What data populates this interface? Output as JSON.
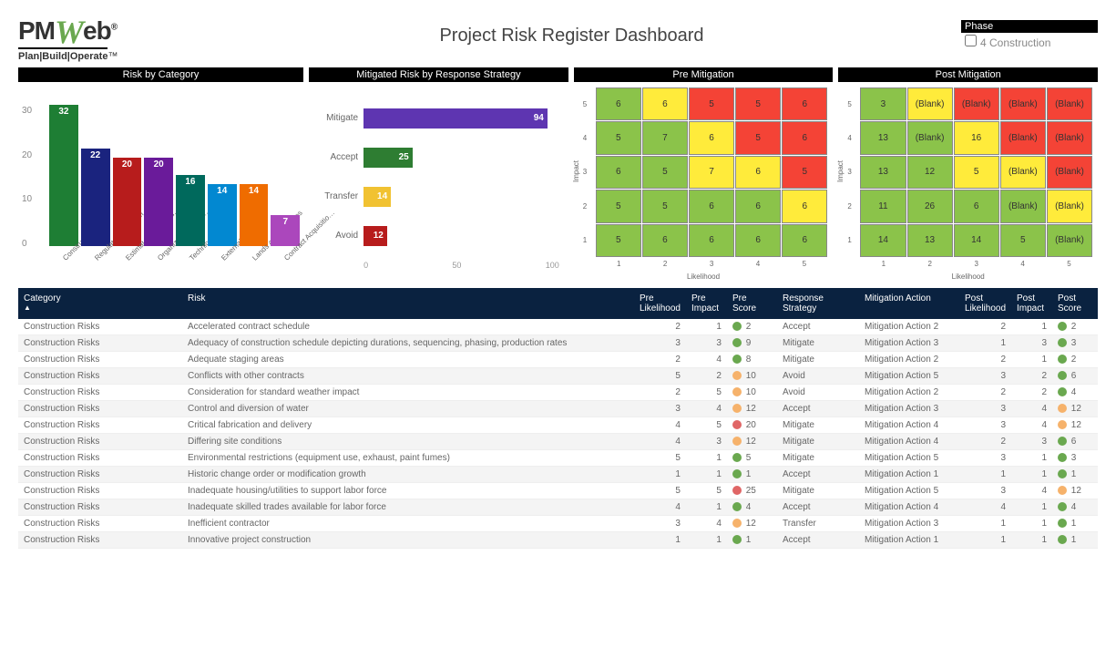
{
  "title": "Project Risk Register Dashboard",
  "logo": {
    "text_before": "PM",
    "w": "W",
    "text_after": "eb",
    "tagline": "Plan|Build|Operate",
    "tm": "™",
    "reg": "®"
  },
  "phase": {
    "label": "Phase",
    "value": "4 Construction"
  },
  "colors": {
    "header_bg": "#000000",
    "table_header_bg": "#0a2240",
    "green": "#6aa84f",
    "yellow": "#f1c232",
    "red": "#cc0000",
    "orange": "#f6b26b",
    "heat_green": "#8bc34a",
    "heat_yellow": "#ffeb3b",
    "heat_red": "#f44336"
  },
  "panel_titles": {
    "cat": "Risk by Category",
    "strat": "Mitigated Risk by Response Strategy",
    "pre": "Pre Mitigation",
    "post": "Post Mitigation"
  },
  "risk_by_category": {
    "type": "bar",
    "ymax": 35,
    "yticks": [
      0,
      10,
      20,
      30
    ],
    "bars": [
      {
        "label": "Construction …",
        "value": 32,
        "color": "#1e7e34"
      },
      {
        "label": "Regulatory and Envi…",
        "value": 22,
        "color": "#1a237e"
      },
      {
        "label": "Estimate and Sched…",
        "value": 20,
        "color": "#b71c1c"
      },
      {
        "label": "Organizational and …",
        "value": 20,
        "color": "#6a1b9a"
      },
      {
        "label": "Technical Risks",
        "value": 16,
        "color": "#00695c"
      },
      {
        "label": "External Risks",
        "value": 14,
        "color": "#0288d1"
      },
      {
        "label": "Lands and Damages",
        "value": 14,
        "color": "#ef6c00"
      },
      {
        "label": "Contract Acquisitio…",
        "value": 7,
        "color": "#ab47bc"
      }
    ]
  },
  "risk_by_strategy": {
    "type": "hbar",
    "xmax": 100,
    "xticks": [
      0,
      50,
      100
    ],
    "bars": [
      {
        "label": "Mitigate",
        "value": 94,
        "color": "#5e35b1"
      },
      {
        "label": "Accept",
        "value": 25,
        "color": "#2e7d32"
      },
      {
        "label": "Transfer",
        "value": 14,
        "color": "#f1c232"
      },
      {
        "label": "Avoid",
        "value": 12,
        "color": "#b71c1c"
      }
    ]
  },
  "pre_mitigation": {
    "xlabel": "Likelihood",
    "ylabel": "Impact",
    "ticks": [
      1,
      2,
      3,
      4,
      5
    ],
    "rows": [
      [
        {
          "v": "6",
          "c": "g"
        },
        {
          "v": "6",
          "c": "y"
        },
        {
          "v": "5",
          "c": "r"
        },
        {
          "v": "5",
          "c": "r"
        },
        {
          "v": "6",
          "c": "r"
        }
      ],
      [
        {
          "v": "5",
          "c": "g"
        },
        {
          "v": "7",
          "c": "g"
        },
        {
          "v": "6",
          "c": "y"
        },
        {
          "v": "5",
          "c": "r"
        },
        {
          "v": "6",
          "c": "r"
        }
      ],
      [
        {
          "v": "6",
          "c": "g"
        },
        {
          "v": "5",
          "c": "g"
        },
        {
          "v": "7",
          "c": "y"
        },
        {
          "v": "6",
          "c": "y"
        },
        {
          "v": "5",
          "c": "r"
        }
      ],
      [
        {
          "v": "5",
          "c": "g"
        },
        {
          "v": "5",
          "c": "g"
        },
        {
          "v": "6",
          "c": "g"
        },
        {
          "v": "6",
          "c": "g"
        },
        {
          "v": "6",
          "c": "y"
        }
      ],
      [
        {
          "v": "5",
          "c": "g"
        },
        {
          "v": "6",
          "c": "g"
        },
        {
          "v": "6",
          "c": "g"
        },
        {
          "v": "6",
          "c": "g"
        },
        {
          "v": "6",
          "c": "g"
        }
      ]
    ]
  },
  "post_mitigation": {
    "xlabel": "Likelihood",
    "ylabel": "Impact",
    "ticks": [
      1,
      2,
      3,
      4,
      5
    ],
    "rows": [
      [
        {
          "v": "3",
          "c": "g"
        },
        {
          "v": "(Blank)",
          "c": "y"
        },
        {
          "v": "(Blank)",
          "c": "r"
        },
        {
          "v": "(Blank)",
          "c": "r"
        },
        {
          "v": "(Blank)",
          "c": "r"
        }
      ],
      [
        {
          "v": "13",
          "c": "g"
        },
        {
          "v": "(Blank)",
          "c": "g"
        },
        {
          "v": "16",
          "c": "y"
        },
        {
          "v": "(Blank)",
          "c": "r"
        },
        {
          "v": "(Blank)",
          "c": "r"
        }
      ],
      [
        {
          "v": "13",
          "c": "g"
        },
        {
          "v": "12",
          "c": "g"
        },
        {
          "v": "5",
          "c": "y"
        },
        {
          "v": "(Blank)",
          "c": "y"
        },
        {
          "v": "(Blank)",
          "c": "r"
        }
      ],
      [
        {
          "v": "11",
          "c": "g"
        },
        {
          "v": "26",
          "c": "g"
        },
        {
          "v": "6",
          "c": "g"
        },
        {
          "v": "(Blank)",
          "c": "g"
        },
        {
          "v": "(Blank)",
          "c": "y"
        }
      ],
      [
        {
          "v": "14",
          "c": "g"
        },
        {
          "v": "13",
          "c": "g"
        },
        {
          "v": "14",
          "c": "g"
        },
        {
          "v": "5",
          "c": "g"
        },
        {
          "v": "(Blank)",
          "c": "g"
        }
      ]
    ]
  },
  "table": {
    "columns": [
      "Category",
      "Risk",
      "Pre Likelihood",
      "Pre Impact",
      "Pre Score",
      "Response Strategy",
      "Mitigation Action",
      "Post Likelihood",
      "Post Impact",
      "Post Score"
    ],
    "rows": [
      {
        "cat": "Construction Risks",
        "risk": "Accelerated contract schedule",
        "pl": 2,
        "pi": 1,
        "ps": 2,
        "psC": "g",
        "strat": "Accept",
        "act": "Mitigation Action 2",
        "ol": 2,
        "oi": 1,
        "os": 2,
        "osC": "g"
      },
      {
        "cat": "Construction Risks",
        "risk": "Adequacy of construction schedule depicting durations, sequencing, phasing, production rates",
        "pl": 3,
        "pi": 3,
        "ps": 9,
        "psC": "g",
        "strat": "Mitigate",
        "act": "Mitigation Action 3",
        "ol": 1,
        "oi": 3,
        "os": 3,
        "osC": "g"
      },
      {
        "cat": "Construction Risks",
        "risk": "Adequate staging areas",
        "pl": 2,
        "pi": 4,
        "ps": 8,
        "psC": "g",
        "strat": "Mitigate",
        "act": "Mitigation Action 2",
        "ol": 2,
        "oi": 1,
        "os": 2,
        "osC": "g"
      },
      {
        "cat": "Construction Risks",
        "risk": "Conflicts with other contracts",
        "pl": 5,
        "pi": 2,
        "ps": 10,
        "psC": "y",
        "strat": "Avoid",
        "act": "Mitigation Action 5",
        "ol": 3,
        "oi": 2,
        "os": 6,
        "osC": "g"
      },
      {
        "cat": "Construction Risks",
        "risk": "Consideration for standard weather impact",
        "pl": 2,
        "pi": 5,
        "ps": 10,
        "psC": "y",
        "strat": "Avoid",
        "act": "Mitigation Action 2",
        "ol": 2,
        "oi": 2,
        "os": 4,
        "osC": "g"
      },
      {
        "cat": "Construction Risks",
        "risk": "Control and diversion of water",
        "pl": 3,
        "pi": 4,
        "ps": 12,
        "psC": "y",
        "strat": "Accept",
        "act": "Mitigation Action 3",
        "ol": 3,
        "oi": 4,
        "os": 12,
        "osC": "y"
      },
      {
        "cat": "Construction Risks",
        "risk": "Critical fabrication and delivery",
        "pl": 4,
        "pi": 5,
        "ps": 20,
        "psC": "r",
        "strat": "Mitigate",
        "act": "Mitigation Action 4",
        "ol": 3,
        "oi": 4,
        "os": 12,
        "osC": "y"
      },
      {
        "cat": "Construction Risks",
        "risk": "Differing site conditions",
        "pl": 4,
        "pi": 3,
        "ps": 12,
        "psC": "y",
        "strat": "Mitigate",
        "act": "Mitigation Action 4",
        "ol": 2,
        "oi": 3,
        "os": 6,
        "osC": "g"
      },
      {
        "cat": "Construction Risks",
        "risk": "Environmental restrictions (equipment use, exhaust, paint fumes)",
        "pl": 5,
        "pi": 1,
        "ps": 5,
        "psC": "g",
        "strat": "Mitigate",
        "act": "Mitigation Action 5",
        "ol": 3,
        "oi": 1,
        "os": 3,
        "osC": "g"
      },
      {
        "cat": "Construction Risks",
        "risk": "Historic change order or modification growth",
        "pl": 1,
        "pi": 1,
        "ps": 1,
        "psC": "g",
        "strat": "Accept",
        "act": "Mitigation Action 1",
        "ol": 1,
        "oi": 1,
        "os": 1,
        "osC": "g"
      },
      {
        "cat": "Construction Risks",
        "risk": "Inadequate housing/utilities to support labor force",
        "pl": 5,
        "pi": 5,
        "ps": 25,
        "psC": "r",
        "strat": "Mitigate",
        "act": "Mitigation Action 5",
        "ol": 3,
        "oi": 4,
        "os": 12,
        "osC": "y"
      },
      {
        "cat": "Construction Risks",
        "risk": "Inadequate skilled trades available for labor force",
        "pl": 4,
        "pi": 1,
        "ps": 4,
        "psC": "g",
        "strat": "Accept",
        "act": "Mitigation Action 4",
        "ol": 4,
        "oi": 1,
        "os": 4,
        "osC": "g"
      },
      {
        "cat": "Construction Risks",
        "risk": "Inefficient contractor",
        "pl": 3,
        "pi": 4,
        "ps": 12,
        "psC": "y",
        "strat": "Transfer",
        "act": "Mitigation Action 3",
        "ol": 1,
        "oi": 1,
        "os": 1,
        "osC": "g"
      },
      {
        "cat": "Construction Risks",
        "risk": "Innovative project construction",
        "pl": 1,
        "pi": 1,
        "ps": 1,
        "psC": "g",
        "strat": "Accept",
        "act": "Mitigation Action 1",
        "ol": 1,
        "oi": 1,
        "os": 1,
        "osC": "g"
      }
    ]
  },
  "score_colors": {
    "g": "#6aa84f",
    "y": "#f6b26b",
    "r": "#e06666"
  },
  "heat_colors": {
    "g": "#8bc34a",
    "y": "#ffeb3b",
    "r": "#f44336"
  }
}
